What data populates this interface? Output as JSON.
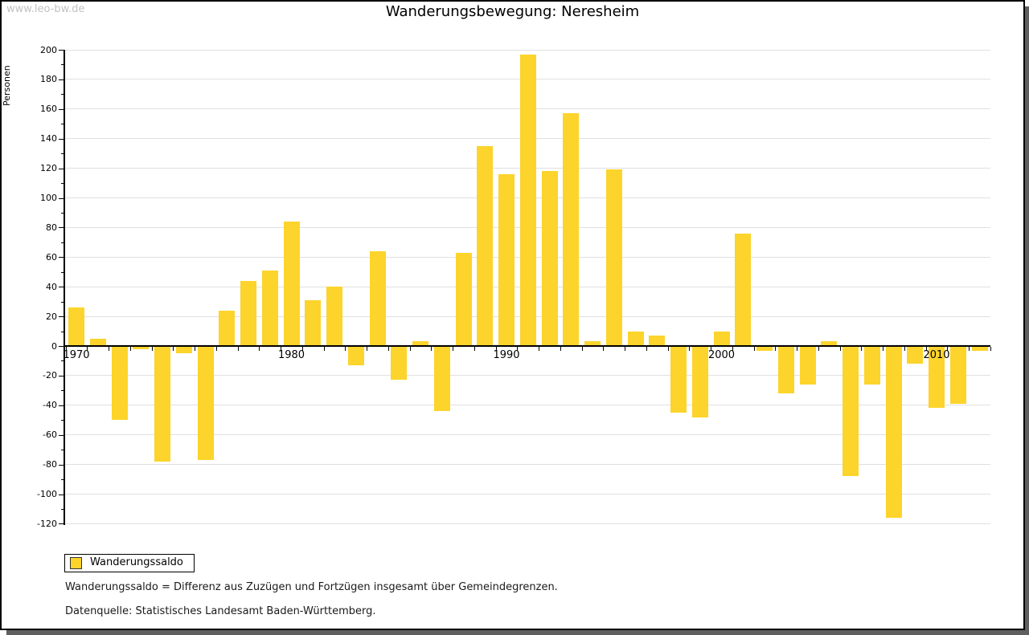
{
  "watermark": "www.leo-bw.de",
  "title": "Wanderungsbewegung: Neresheim",
  "y_axis": {
    "label": "Personen",
    "max": 200,
    "min": -120,
    "major_step": 20,
    "minor_step": 10
  },
  "x_axis": {
    "decade_labels": [
      "1970",
      "1980",
      "1990",
      "2000",
      "2010"
    ]
  },
  "legend": {
    "label": "Wanderungssaldo"
  },
  "footnotes": [
    "Wanderungssaldo = Differenz aus Zuzügen und Fortzügen insgesamt über Gemeindegrenzen.",
    "Datenquelle: Statistisches Landesamt Baden-Württemberg."
  ],
  "colors": {
    "bar": "#FCD42B",
    "gridline": "#e0e0e0",
    "axis": "#000000",
    "watermark": "#c2c2c2",
    "shadow": "#5f5f5f"
  },
  "chart_data": {
    "type": "bar",
    "title": "Wanderungsbewegung: Neresheim",
    "xlabel": "",
    "ylabel": "Personen",
    "ylim": [
      -120,
      200
    ],
    "grid": true,
    "legend_position": "bottom-left",
    "series_name": "Wanderungssaldo",
    "x": [
      1970,
      1971,
      1972,
      1973,
      1974,
      1975,
      1976,
      1977,
      1978,
      1979,
      1980,
      1981,
      1982,
      1983,
      1984,
      1985,
      1986,
      1987,
      1988,
      1989,
      1990,
      1991,
      1992,
      1993,
      1994,
      1995,
      1996,
      1997,
      1998,
      1999,
      2000,
      2001,
      2002,
      2003,
      2004,
      2005,
      2006,
      2007,
      2008,
      2009,
      2010,
      2011,
      2012
    ],
    "values": [
      26,
      5,
      -50,
      -2,
      -78,
      -5,
      -77,
      24,
      44,
      51,
      84,
      31,
      40,
      -13,
      64,
      -23,
      3,
      -44,
      63,
      135,
      116,
      197,
      118,
      157,
      3,
      119,
      10,
      7,
      -45,
      -48,
      10,
      76,
      -3,
      -32,
      -26,
      3,
      -88,
      -26,
      -116,
      -12,
      -42,
      -39,
      -3
    ]
  }
}
